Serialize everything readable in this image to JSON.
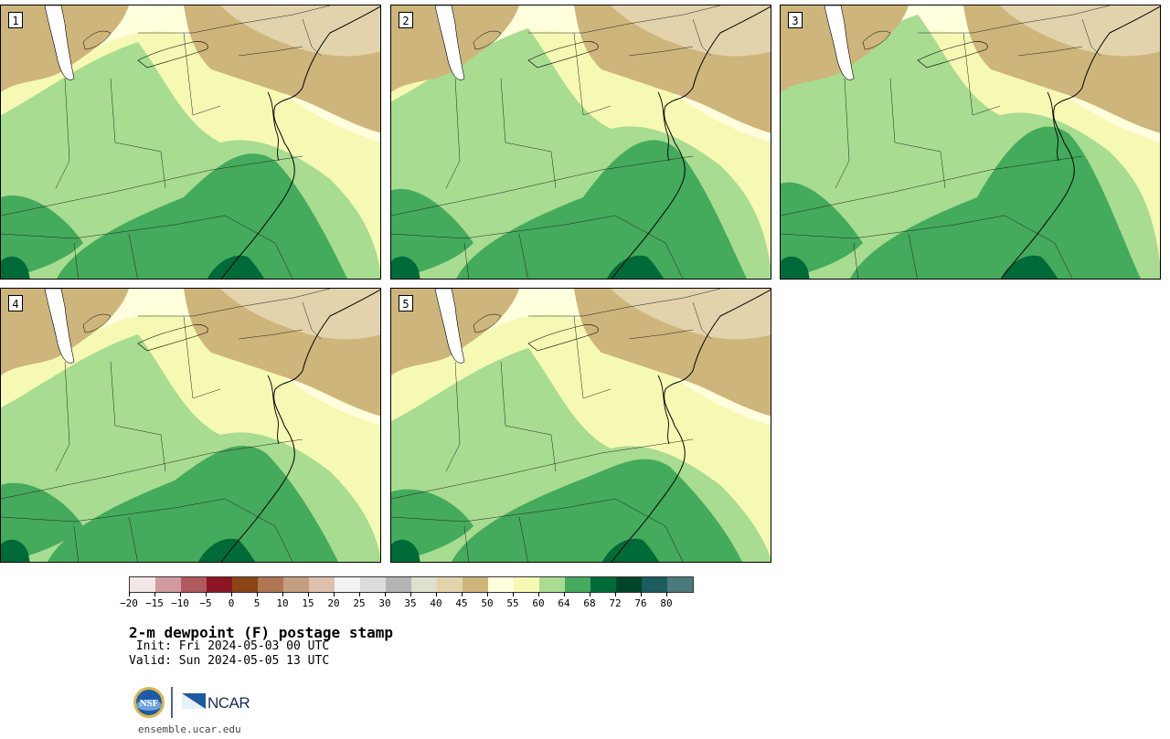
{
  "members": [
    "1",
    "2",
    "3",
    "4",
    "5"
  ],
  "colorbar": {
    "colors": [
      "#f2e6e6",
      "#d39ba0",
      "#b05a5e",
      "#8c1523",
      "#8a4416",
      "#ae7654",
      "#c59d82",
      "#dec0ad",
      "#f2f2f2",
      "#dcdcdc",
      "#b4b4b4",
      "#dfe0cd",
      "#e2d3ac",
      "#cdb57b",
      "#ffffdd",
      "#f6f9b4",
      "#a8dc90",
      "#44aa5c",
      "#006b38",
      "#00442a",
      "#1c5b5e",
      "#4a7a7b"
    ],
    "tick_labels": [
      "-20",
      "-15",
      "-10",
      "-5",
      "0",
      "5",
      "10",
      "15",
      "20",
      "25",
      "30",
      "35",
      "40",
      "45",
      "50",
      "55",
      "60",
      "64",
      "68",
      "72",
      "76",
      "80"
    ]
  },
  "title": "2-m dewpoint (F) postage stamp",
  "init": " Init: Fri 2024-05-03 00 UTC",
  "valid": "Valid: Sun 2024-05-05 13 UTC",
  "logo": {
    "nsf": "NSF",
    "ncar": "NCAR"
  },
  "footer": "ensemble.ucar.edu"
}
